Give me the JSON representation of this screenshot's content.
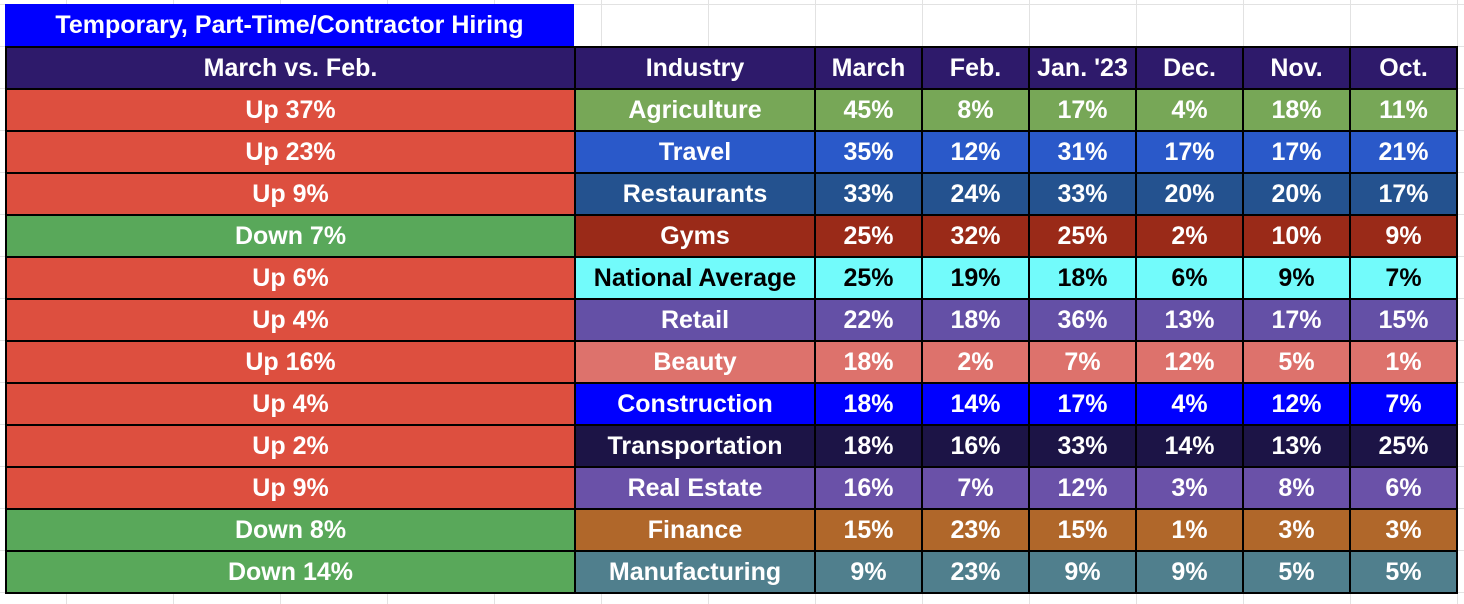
{
  "title": "Temporary, Part-Time/Contractor Hiring",
  "headers": {
    "change": "March vs. Feb.",
    "industry": "Industry",
    "months": [
      "March",
      "Feb.",
      "Jan. '23",
      "Dec.",
      "Nov.",
      "Oct."
    ]
  },
  "colors": {
    "up": "#dd4f3f",
    "down": "#59a85a",
    "header": "#2e1a6b",
    "title_bg": "#0000ff"
  },
  "rows": [
    {
      "change": "Up 37%",
      "direction": "up",
      "industry": "Agriculture",
      "color": "#77a757",
      "text": "#ffffff",
      "values": [
        "45%",
        "8%",
        "17%",
        "4%",
        "18%",
        "11%"
      ]
    },
    {
      "change": "Up 23%",
      "direction": "up",
      "industry": "Travel",
      "color": "#2a59c9",
      "text": "#ffffff",
      "values": [
        "35%",
        "12%",
        "31%",
        "17%",
        "17%",
        "21%"
      ]
    },
    {
      "change": "Up 9%",
      "direction": "up",
      "industry": "Restaurants",
      "color": "#24528f",
      "text": "#ffffff",
      "values": [
        "33%",
        "24%",
        "33%",
        "20%",
        "20%",
        "17%"
      ]
    },
    {
      "change": "Down 7%",
      "direction": "down",
      "industry": "Gyms",
      "color": "#9a2a18",
      "text": "#ffffff",
      "values": [
        "25%",
        "32%",
        "25%",
        "2%",
        "10%",
        "9%"
      ]
    },
    {
      "change": "Up 6%",
      "direction": "up",
      "industry": "National Average",
      "color": "#72fbfb",
      "text": "#000000",
      "values": [
        "25%",
        "19%",
        "18%",
        "6%",
        "9%",
        "7%"
      ]
    },
    {
      "change": "Up 4%",
      "direction": "up",
      "industry": "Retail",
      "color": "#6450a6",
      "text": "#ffffff",
      "values": [
        "22%",
        "18%",
        "36%",
        "13%",
        "17%",
        "15%"
      ]
    },
    {
      "change": "Up 16%",
      "direction": "up",
      "industry": "Beauty",
      "color": "#dd726c",
      "text": "#ffffff",
      "values": [
        "18%",
        "2%",
        "7%",
        "12%",
        "5%",
        "1%"
      ]
    },
    {
      "change": "Up 4%",
      "direction": "up",
      "industry": "Construction",
      "color": "#0000ff",
      "text": "#ffffff",
      "values": [
        "18%",
        "14%",
        "17%",
        "4%",
        "12%",
        "7%"
      ]
    },
    {
      "change": "Up 2%",
      "direction": "up",
      "industry": "Transportation",
      "color": "#1c1446",
      "text": "#ffffff",
      "values": [
        "18%",
        "16%",
        "33%",
        "14%",
        "13%",
        "25%"
      ]
    },
    {
      "change": "Up 9%",
      "direction": "up",
      "industry": "Real Estate",
      "color": "#6a51a8",
      "text": "#ffffff",
      "values": [
        "16%",
        "7%",
        "12%",
        "3%",
        "8%",
        "6%"
      ]
    },
    {
      "change": "Down 8%",
      "direction": "down",
      "industry": "Finance",
      "color": "#b0672a",
      "text": "#ffffff",
      "values": [
        "15%",
        "23%",
        "15%",
        "1%",
        "3%",
        "3%"
      ]
    },
    {
      "change": "Down 14%",
      "direction": "down",
      "industry": "Manufacturing",
      "color": "#507f8d",
      "text": "#ffffff",
      "values": [
        "9%",
        "23%",
        "9%",
        "9%",
        "5%",
        "5%"
      ]
    }
  ]
}
